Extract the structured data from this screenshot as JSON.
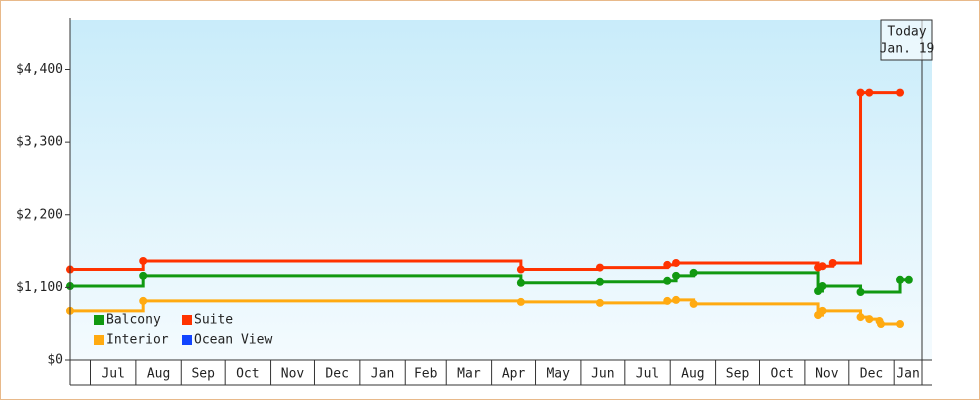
{
  "chart_data": {
    "type": "step-line",
    "today": {
      "label": "Today",
      "date": "Jan. 19"
    },
    "xlim": [
      0,
      582
    ],
    "xticks": [
      {
        "value": 14,
        "label": "Jul"
      },
      {
        "value": 45,
        "label": "Aug"
      },
      {
        "value": 76,
        "label": "Sep"
      },
      {
        "value": 106,
        "label": "Oct"
      },
      {
        "value": 137,
        "label": "Nov"
      },
      {
        "value": 167,
        "label": "Dec"
      },
      {
        "value": 198,
        "label": "Jan"
      },
      {
        "value": 229,
        "label": "Feb"
      },
      {
        "value": 257,
        "label": "Mar"
      },
      {
        "value": 288,
        "label": "Apr"
      },
      {
        "value": 318,
        "label": "May"
      },
      {
        "value": 349,
        "label": "Jun"
      },
      {
        "value": 379,
        "label": "Jul"
      },
      {
        "value": 410,
        "label": "Aug"
      },
      {
        "value": 441,
        "label": "Sep"
      },
      {
        "value": 471,
        "label": "Oct"
      },
      {
        "value": 502,
        "label": "Nov"
      },
      {
        "value": 532,
        "label": "Dec"
      },
      {
        "value": 563,
        "label": "Jan"
      }
    ],
    "ylim": [
      0,
      5150
    ],
    "yticks": [
      {
        "value": 0,
        "label": "$0"
      },
      {
        "value": 1100,
        "label": "$1,100"
      },
      {
        "value": 2200,
        "label": "$2,200"
      },
      {
        "value": 3300,
        "label": "$3,300"
      },
      {
        "value": 4400,
        "label": "$4,400"
      }
    ],
    "series": [
      {
        "name": "Balcony",
        "color": "#119911",
        "x": [
          0,
          50,
          308,
          362,
          408,
          414,
          426,
          511,
          514,
          540,
          567,
          573
        ],
        "values": [
          1120,
          1275,
          1170,
          1185,
          1200,
          1275,
          1320,
          1045,
          1120,
          1030,
          1215,
          1215
        ]
      },
      {
        "name": "Suite",
        "color": "#ff3300",
        "x": [
          0,
          50,
          308,
          362,
          408,
          414,
          511,
          514,
          521,
          540,
          546,
          567
        ],
        "values": [
          1370,
          1500,
          1370,
          1400,
          1440,
          1470,
          1400,
          1420,
          1470,
          4050,
          4050,
          4050
        ]
      },
      {
        "name": "Interior",
        "color": "#ffaa11",
        "x": [
          0,
          50,
          308,
          362,
          408,
          414,
          426,
          511,
          514,
          540,
          546,
          553,
          554,
          567
        ],
        "values": [
          745,
          895,
          880,
          865,
          895,
          910,
          850,
          680,
          745,
          650,
          620,
          590,
          545,
          545
        ]
      },
      {
        "name": "Ocean View",
        "color": "#1144ff",
        "x": [],
        "values": []
      }
    ]
  }
}
